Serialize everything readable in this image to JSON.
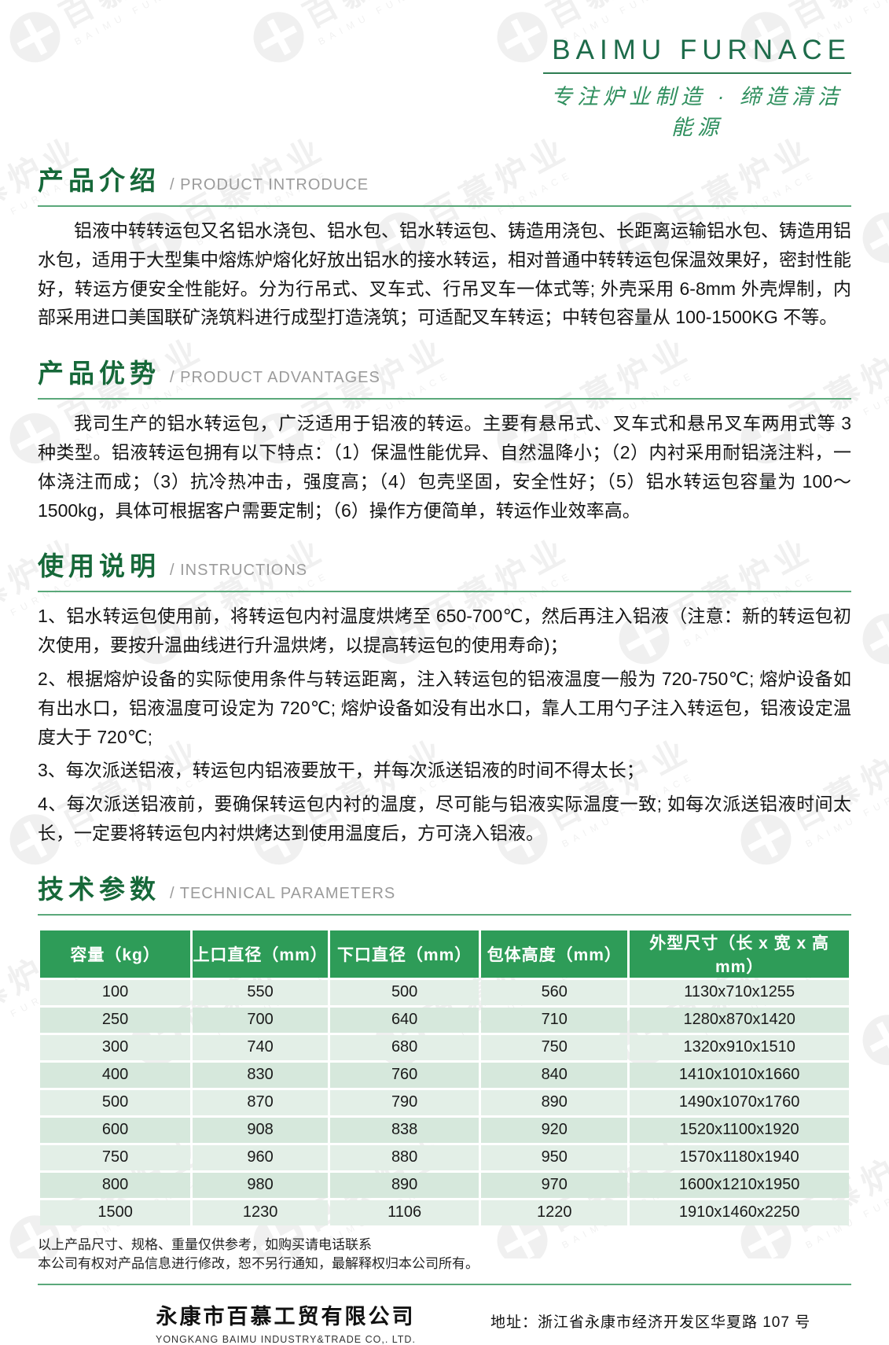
{
  "header": {
    "brand": "BAIMU FURNACE",
    "slogan": "专注炉业制造 · 缔造清洁能源"
  },
  "watermark": {
    "text_zh": "百慕炉业",
    "text_en": "BAIMU FURNACE"
  },
  "sections": [
    {
      "title_zh": "产品介绍",
      "title_en": "/ PRODUCT INTRODUCE",
      "body": "铝液中转转运包又名铝水浇包、铝水包、铝水转运包、铸造用浇包、长距离运输铝水包、铸造用铝水包，适用于大型集中熔炼炉熔化好放出铝水的接水转运，相对普通中转转运包保温效果好，密封性能好，转运方便安全性能好。分为行吊式、叉车式、行吊叉车一体式等; 外壳采用 6-8mm 外壳焊制，内部采用进口美国联矿浇筑料进行成型打造浇筑；可适配叉车转运；中转包容量从 100-1500KG 不等。"
    },
    {
      "title_zh": "产品优势",
      "title_en": "/ PRODUCT ADVANTAGES",
      "body": "我司生产的铝水转运包，广泛适用于铝液的转运。主要有悬吊式、叉车式和悬吊叉车两用式等 3 种类型。铝液转运包拥有以下特点：（1）保温性能优异、自然温降小；（2）内衬采用耐铝浇注料，一体浇注而成；（3）抗冷热冲击，强度高；（4）包壳坚固，安全性好；（5）铝水转运包容量为 100～1500kg，具体可根据客户需要定制；（6）操作方便简单，转运作业效率高。"
    },
    {
      "title_zh": "使用说明",
      "title_en": "/ INSTRUCTIONS",
      "items": [
        "1、铝水转运包使用前，将转运包内衬温度烘烤至 650-700℃，然后再注入铝液（注意：新的转运包初次使用，要按升温曲线进行升温烘烤，以提高转运包的使用寿命)；",
        "2、根据熔炉设备的实际使用条件与转运距离，注入转运包的铝液温度一般为 720-750℃; 熔炉设备如有出水口，铝液温度可设定为 720℃; 熔炉设备如没有出水口，靠人工用勺子注入转运包，铝液设定温度大于 720℃;",
        "3、每次派送铝液，转运包内铝液要放干，并每次派送铝液的时间不得太长；",
        "4、每次派送铝液前，要确保转运包内衬的温度，尽可能与铝液实际温度一致; 如每次派送铝液时间太长，一定要将转运包内衬烘烤达到使用温度后，方可浇入铝液。"
      ]
    },
    {
      "title_zh": "技术参数",
      "title_en": "/ TECHNICAL PARAMETERS"
    }
  ],
  "table": {
    "headers": [
      "容量（kg）",
      "上口直径（mm）",
      "下口直径（mm）",
      "包体高度（mm）",
      "外型尺寸（长 x 宽 x 高 mm）"
    ],
    "col_widths": [
      "18.8%",
      "16.9%",
      "18.6%",
      "18.3%",
      "27.4%"
    ],
    "rows": [
      [
        "100",
        "550",
        "500",
        "560",
        "1130x710x1255"
      ],
      [
        "250",
        "700",
        "640",
        "710",
        "1280x870x1420"
      ],
      [
        "300",
        "740",
        "680",
        "750",
        "1320x910x1510"
      ],
      [
        "400",
        "830",
        "760",
        "840",
        "1410x1010x1660"
      ],
      [
        "500",
        "870",
        "790",
        "890",
        "1490x1070x1760"
      ],
      [
        "600",
        "908",
        "838",
        "920",
        "1520x1100x1920"
      ],
      [
        "750",
        "960",
        "880",
        "950",
        "1570x1180x1940"
      ],
      [
        "800",
        "980",
        "890",
        "970",
        "1600x1210x1950"
      ],
      [
        "1500",
        "1230",
        "1106",
        "1220",
        "1910x1460x2250"
      ]
    ]
  },
  "notes": [
    "以上产品尺寸、规格、重量仅供参考，如购买请电话联系",
    "本公司有权对产品信息进行修改，恕不另行通知，最解释权归本公司所有。"
  ],
  "footer": {
    "company_zh": "永康市百慕工贸有限公司",
    "company_en": "YONGKANG BAIMU INDUSTRY&TRADE CO,. LTD.",
    "address": "地址：浙江省永康市经济开发区华夏路 107 号"
  },
  "colors": {
    "heading_green": "#166839",
    "heading_gray": "#9b9b9b",
    "brand_green": "#1d6b4a",
    "table_header_green": "#2e9c58",
    "row_light": "#e3efe7",
    "row_dark": "#d6e8dc",
    "rule_green": "#5aa87a"
  }
}
